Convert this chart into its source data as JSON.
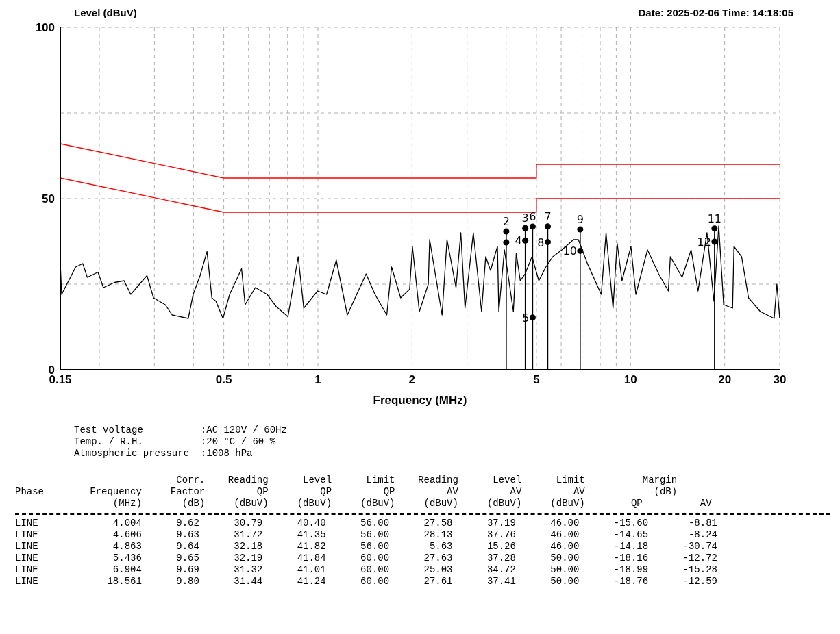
{
  "chart_data": {
    "type": "line",
    "title": "Date: 2025-02-06  Time: 14:18:05",
    "ylabel": "Level (dBuV)",
    "xlabel": "Frequency (MHz)",
    "log": "x",
    "grid": true,
    "xlim": [
      0.15,
      30
    ],
    "xticks": [
      0.15,
      {
        "value": 0.2,
        "label": null
      },
      {
        "value": 0.3,
        "label": null
      },
      {
        "value": 0.4,
        "label": null
      },
      0.5,
      {
        "value": 0.6,
        "label": null
      },
      {
        "value": 0.7,
        "label": null
      },
      {
        "value": 0.8,
        "label": null
      },
      {
        "value": 0.9,
        "label": null
      },
      1,
      2,
      {
        "value": 3,
        "label": null
      },
      {
        "value": 4,
        "label": null
      },
      5,
      {
        "value": 6,
        "label": null
      },
      {
        "value": 7,
        "label": null
      },
      {
        "value": 8,
        "label": null
      },
      {
        "value": 9,
        "label": null
      },
      10,
      20,
      30
    ],
    "ylim": [
      0,
      100
    ],
    "yticks": [
      0,
      {
        "value": 25,
        "label": null
      },
      50,
      {
        "value": 75,
        "label": null
      },
      100
    ],
    "series": [
      {
        "color": "#000000",
        "x": [
          0.15,
          0.1515,
          0.168,
          0.177,
          0.183,
          0.198,
          0.206,
          0.224,
          0.24,
          0.252,
          0.284,
          0.298,
          0.325,
          0.342,
          0.385,
          0.399,
          0.42,
          0.442,
          0.458,
          0.472,
          0.497,
          0.522,
          0.57,
          0.585,
          0.631,
          0.688,
          0.735,
          0.802,
          0.865,
          0.901,
          0.998,
          1.066,
          1.145,
          1.242,
          1.426,
          1.523,
          1.661,
          1.721,
          1.839,
          1.965,
          2.006,
          2.111,
          2.255,
          2.277,
          2.496,
          2.588,
          2.765,
          2.865,
          2.955,
          3.141,
          3.338,
          3.441,
          3.567,
          3.752,
          3.79,
          3.95,
          4.22,
          4.31,
          4.44,
          4.6,
          4.84,
          5.09,
          5.36,
          5.64,
          6.03,
          6.57,
          6.81,
          7.28,
          8.06,
          8.35,
          8.79,
          9.06,
          9.39,
          10.03,
          10.4,
          11.33,
          12.3,
          13.21,
          13.41,
          14.62,
          15.62,
          16.44,
          17.56,
          18.48,
          19.15,
          19.85,
          21.2,
          21.42,
          22.66,
          23.85,
          26.01,
          28.8,
          29.38,
          30
        ],
        "values": [
          31,
          22,
          30,
          31,
          27,
          28.5,
          24,
          25.5,
          26,
          22,
          27.5,
          21,
          19,
          16,
          15,
          22,
          27.5,
          34.5,
          21,
          20,
          15,
          22,
          29.5,
          19,
          24,
          22,
          18.5,
          15.5,
          33,
          18,
          23,
          22,
          32,
          16,
          28,
          22,
          16,
          30,
          21,
          23.5,
          36,
          17,
          25,
          38,
          16,
          38,
          24,
          40,
          18,
          40,
          17,
          33,
          29,
          36,
          17,
          35,
          17,
          34,
          26,
          28,
          33,
          26,
          30,
          33,
          35,
          38,
          38,
          31,
          22,
          40,
          18,
          37,
          26,
          36,
          22,
          35,
          28,
          23,
          33,
          27,
          35,
          23,
          40,
          20,
          42,
          19,
          18,
          36,
          33,
          21,
          17,
          15,
          25,
          15
        ]
      },
      {
        "color": "#ff0000",
        "x": [
          0.15,
          0.5,
          5,
          5,
          30
        ],
        "values": [
          66,
          56,
          56,
          60,
          60
        ]
      },
      {
        "color": "#ff0000",
        "x": [
          0.15,
          0.5,
          5,
          5,
          30
        ],
        "values": [
          56,
          46,
          46,
          50,
          50
        ]
      },
      {
        "type": "lollipop",
        "color": "#000000",
        "x": [
          4.004,
          4.606,
          4.863,
          5.436,
          6.904,
          18.561
        ],
        "values": [
          40.4,
          41.35,
          41.82,
          41.84,
          41.01,
          41.24
        ]
      },
      {
        "type": "scatter",
        "marker": "circle",
        "color": "#000000",
        "x": [
          4.004,
          4.606,
          4.863,
          5.436,
          6.904,
          18.561
        ],
        "values": [
          37.19,
          37.76,
          15.26,
          37.28,
          34.72,
          37.41
        ]
      }
    ],
    "annotations": [
      {
        "text": "2",
        "x": 4.004,
        "y": 40.4
      },
      {
        "text": "3",
        "x": 4.606,
        "y": 41.35
      },
      {
        "text": "4",
        "x": 4.606,
        "y": 37.76
      },
      {
        "text": "6",
        "x": 4.863,
        "y": 41.82
      },
      {
        "text": "5",
        "x": 4.863,
        "y": 15.26
      },
      {
        "text": "7",
        "x": 5.436,
        "y": 41.84
      },
      {
        "text": "8",
        "x": 5.436,
        "y": 37.28
      },
      {
        "text": "9",
        "x": 6.904,
        "y": 41.01
      },
      {
        "text": "10",
        "x": 6.904,
        "y": 34.72
      },
      {
        "text": "11",
        "x": 18.561,
        "y": 41.24
      },
      {
        "text": "12",
        "x": 18.561,
        "y": 37.41
      },
      "Test voltage          :AC 120V / 60Hz",
      "Temp. / R.H.          :20 °C / 60 %",
      "Atmospheric pressure  :1008 hPa",
      "                            Corr.    Reading      Level      Limit    Reading      Level      Limit          Margin",
      "Phase        Frequency     Factor         QP         QP         QP         AV         AV         AV            (dB)",
      "                 (MHz)       (dB)     (dBuV)     (dBuV)     (dBuV)     (dBuV)     (dBuV)     (dBuV)        QP          AV",
      "LINE             4.004      9.62      30.79      40.40      56.00      27.58      37.19      46.00      -15.60       -8.81",
      "LINE             4.606      9.63      31.72      41.35      56.00      28.13      37.76      46.00      -14.65       -8.24",
      "LINE             4.863      9.64      32.18      41.82      56.00       5.63      15.26      46.00      -14.18      -30.74",
      "LINE             5.436      9.65      32.19      41.84      60.00      27.63      37.28      50.00      -18.16      -12.72",
      "LINE             6.904      9.69      31.32      41.01      60.00      25.03      34.72      50.00      -18.99      -15.28",
      "LINE            18.561      9.80      31.44      41.24      60.00      27.61      37.41      50.00      -18.76      -12.59"
    ]
  }
}
